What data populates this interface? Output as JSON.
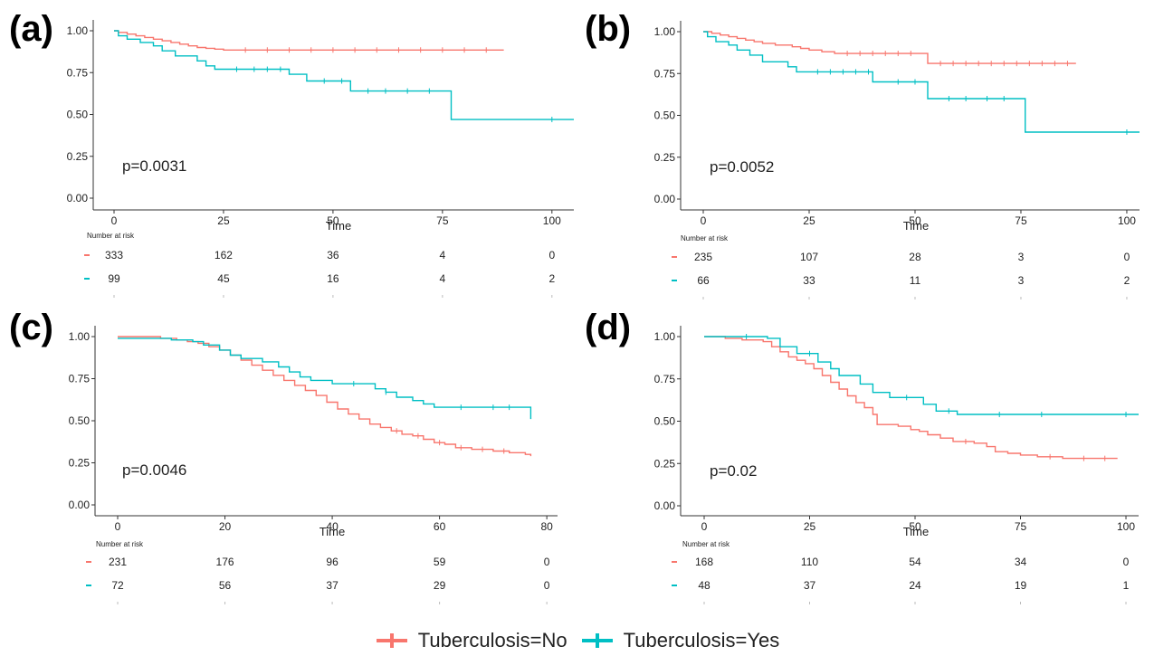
{
  "colors": {
    "no": "#F8766D",
    "yes": "#00BFC4",
    "axis": "#333333",
    "text": "#222222"
  },
  "legend": [
    {
      "label": "Tuberculosis=No",
      "color": "#F8766D"
    },
    {
      "label": "Tuberculosis=Yes",
      "color": "#00BFC4"
    }
  ],
  "chart_data": [
    {
      "panel": "(a)",
      "type": "line",
      "subtype": "kaplan-meier",
      "xlabel": "Time",
      "xlim": [
        0,
        105
      ],
      "ylim": [
        0,
        1
      ],
      "xticks": [
        "0",
        "25",
        "50",
        "75",
        "100"
      ],
      "yticks": [
        "0.00",
        "0.25",
        "0.50",
        "0.75",
        "1.00"
      ],
      "pvalue": "p=0.0031",
      "series": [
        {
          "name": "Tuberculosis=No",
          "color": "#F8766D",
          "steps": [
            [
              0,
              1.0
            ],
            [
              1,
              0.99
            ],
            [
              3,
              0.98
            ],
            [
              5,
              0.97
            ],
            [
              7,
              0.96
            ],
            [
              9,
              0.95
            ],
            [
              11,
              0.94
            ],
            [
              13,
              0.93
            ],
            [
              15,
              0.92
            ],
            [
              17,
              0.91
            ],
            [
              19,
              0.9
            ],
            [
              21,
              0.895
            ],
            [
              23,
              0.89
            ],
            [
              25,
              0.885
            ],
            [
              89,
              0.885
            ]
          ],
          "censor": [
            30,
            35,
            40,
            45,
            50,
            55,
            60,
            65,
            70,
            75,
            80,
            85
          ]
        },
        {
          "name": "Tuberculosis=Yes",
          "color": "#00BFC4",
          "steps": [
            [
              0,
              1.0
            ],
            [
              1,
              0.97
            ],
            [
              3,
              0.95
            ],
            [
              6,
              0.93
            ],
            [
              9,
              0.91
            ],
            [
              11,
              0.88
            ],
            [
              14,
              0.85
            ],
            [
              19,
              0.82
            ],
            [
              21,
              0.79
            ],
            [
              23,
              0.77
            ],
            [
              40,
              0.74
            ],
            [
              44,
              0.7
            ],
            [
              54,
              0.64
            ],
            [
              77,
              0.47
            ],
            [
              105,
              0.47
            ]
          ],
          "censor": [
            28,
            32,
            35,
            38,
            48,
            52,
            58,
            62,
            67,
            72,
            100
          ]
        }
      ],
      "risk_table": {
        "title": "Number at risk",
        "x": [
          "0",
          "25",
          "50",
          "75",
          "100"
        ],
        "rows": [
          {
            "name": "Tuberculosis=No",
            "color": "#F8766D",
            "values": [
              "333",
              "162",
              "36",
              "4",
              "0"
            ]
          },
          {
            "name": "Tuberculosis=Yes",
            "color": "#00BFC4",
            "values": [
              "99",
              "45",
              "16",
              "4",
              "2"
            ]
          }
        ]
      }
    },
    {
      "panel": "(b)",
      "type": "line",
      "subtype": "kaplan-meier",
      "xlabel": "Time",
      "xlim": [
        0,
        103
      ],
      "ylim": [
        0,
        1
      ],
      "xticks": [
        "0",
        "25",
        "50",
        "75",
        "100"
      ],
      "yticks": [
        "0.00",
        "0.25",
        "0.50",
        "0.75",
        "1.00"
      ],
      "pvalue": "p=0.0052",
      "series": [
        {
          "name": "Tuberculosis=No",
          "color": "#F8766D",
          "steps": [
            [
              0,
              1.0
            ],
            [
              2,
              0.99
            ],
            [
              4,
              0.98
            ],
            [
              6,
              0.97
            ],
            [
              8,
              0.96
            ],
            [
              10,
              0.95
            ],
            [
              12,
              0.94
            ],
            [
              14,
              0.93
            ],
            [
              17,
              0.92
            ],
            [
              21,
              0.91
            ],
            [
              23,
              0.9
            ],
            [
              25,
              0.89
            ],
            [
              28,
              0.88
            ],
            [
              31,
              0.87
            ],
            [
              53,
              0.81
            ],
            [
              88,
              0.81
            ]
          ],
          "censor": [
            34,
            37,
            40,
            43,
            46,
            49,
            56,
            59,
            62,
            65,
            68,
            71,
            74,
            77,
            80,
            83,
            86
          ]
        },
        {
          "name": "Tuberculosis=Yes",
          "color": "#00BFC4",
          "steps": [
            [
              0,
              1.0
            ],
            [
              1,
              0.97
            ],
            [
              3,
              0.94
            ],
            [
              6,
              0.92
            ],
            [
              8,
              0.89
            ],
            [
              11,
              0.86
            ],
            [
              14,
              0.82
            ],
            [
              20,
              0.79
            ],
            [
              22,
              0.76
            ],
            [
              40,
              0.7
            ],
            [
              53,
              0.6
            ],
            [
              76,
              0.4
            ],
            [
              103,
              0.4
            ]
          ],
          "censor": [
            27,
            30,
            33,
            36,
            39,
            46,
            50,
            58,
            62,
            67,
            71,
            100
          ]
        }
      ],
      "risk_table": {
        "title": "Number at risk",
        "x": [
          "0",
          "25",
          "50",
          "75",
          "100"
        ],
        "rows": [
          {
            "name": "Tuberculosis=No",
            "color": "#F8766D",
            "values": [
              "235",
              "107",
              "28",
              "3",
              "0"
            ]
          },
          {
            "name": "Tuberculosis=Yes",
            "color": "#00BFC4",
            "values": [
              "66",
              "33",
              "11",
              "3",
              "2"
            ]
          }
        ]
      }
    },
    {
      "panel": "(c)",
      "type": "line",
      "subtype": "kaplan-meier",
      "xlabel": "Time",
      "xlim": [
        0,
        82
      ],
      "ylim": [
        0,
        1
      ],
      "xticks": [
        "0",
        "20",
        "40",
        "60",
        "80"
      ],
      "yticks": [
        "0.00",
        "0.25",
        "0.50",
        "0.75",
        "1.00"
      ],
      "pvalue": "p=0.0046",
      "series": [
        {
          "name": "Tuberculosis=No",
          "color": "#F8766D",
          "steps": [
            [
              0,
              1.0
            ],
            [
              8,
              0.99
            ],
            [
              11,
              0.98
            ],
            [
              13,
              0.97
            ],
            [
              15,
              0.96
            ],
            [
              17,
              0.94
            ],
            [
              19,
              0.92
            ],
            [
              21,
              0.89
            ],
            [
              23,
              0.86
            ],
            [
              25,
              0.83
            ],
            [
              27,
              0.8
            ],
            [
              29,
              0.77
            ],
            [
              31,
              0.74
            ],
            [
              33,
              0.71
            ],
            [
              35,
              0.68
            ],
            [
              37,
              0.65
            ],
            [
              39,
              0.61
            ],
            [
              41,
              0.57
            ],
            [
              43,
              0.54
            ],
            [
              45,
              0.51
            ],
            [
              47,
              0.48
            ],
            [
              49,
              0.46
            ],
            [
              51,
              0.44
            ],
            [
              53,
              0.42
            ],
            [
              55,
              0.41
            ],
            [
              57,
              0.39
            ],
            [
              59,
              0.37
            ],
            [
              61,
              0.36
            ],
            [
              63,
              0.34
            ],
            [
              66,
              0.33
            ],
            [
              70,
              0.32
            ],
            [
              73,
              0.31
            ],
            [
              76,
              0.3
            ],
            [
              77,
              0.29
            ]
          ],
          "censor": [
            52,
            56,
            60,
            64,
            68,
            72
          ]
        },
        {
          "name": "Tuberculosis=Yes",
          "color": "#00BFC4",
          "steps": [
            [
              0,
              0.99
            ],
            [
              6,
              0.99
            ],
            [
              10,
              0.98
            ],
            [
              14,
              0.97
            ],
            [
              16,
              0.95
            ],
            [
              19,
              0.92
            ],
            [
              21,
              0.89
            ],
            [
              23,
              0.87
            ],
            [
              27,
              0.85
            ],
            [
              30,
              0.82
            ],
            [
              32,
              0.79
            ],
            [
              34,
              0.76
            ],
            [
              36,
              0.74
            ],
            [
              40,
              0.72
            ],
            [
              48,
              0.69
            ],
            [
              50,
              0.67
            ],
            [
              52,
              0.64
            ],
            [
              55,
              0.62
            ],
            [
              57,
              0.6
            ],
            [
              59,
              0.58
            ],
            [
              76,
              0.58
            ],
            [
              77,
              0.51
            ]
          ],
          "censor": [
            44,
            50,
            64,
            70,
            73
          ]
        }
      ],
      "risk_table": {
        "title": "Number at risk",
        "x": [
          "0",
          "20",
          "40",
          "60",
          "80"
        ],
        "rows": [
          {
            "name": "Tuberculosis=No",
            "color": "#F8766D",
            "values": [
              "231",
              "176",
              "96",
              "59",
              "0"
            ]
          },
          {
            "name": "Tuberculosis=Yes",
            "color": "#00BFC4",
            "values": [
              "72",
              "56",
              "37",
              "29",
              "0"
            ]
          }
        ]
      }
    },
    {
      "panel": "(d)",
      "type": "line",
      "subtype": "kaplan-meier",
      "xlabel": "Time",
      "xlim": [
        0,
        103
      ],
      "ylim": [
        0,
        1
      ],
      "xticks": [
        "0",
        "25",
        "50",
        "75",
        "100"
      ],
      "yticks": [
        "0.00",
        "0.25",
        "0.50",
        "0.75",
        "1.00"
      ],
      "pvalue": "p=0.02",
      "series": [
        {
          "name": "Tuberculosis=No",
          "color": "#F8766D",
          "steps": [
            [
              0,
              1.0
            ],
            [
              5,
              0.99
            ],
            [
              9,
              0.98
            ],
            [
              14,
              0.97
            ],
            [
              16,
              0.94
            ],
            [
              18,
              0.91
            ],
            [
              20,
              0.88
            ],
            [
              22,
              0.86
            ],
            [
              24,
              0.84
            ],
            [
              26,
              0.81
            ],
            [
              28,
              0.77
            ],
            [
              30,
              0.73
            ],
            [
              32,
              0.69
            ],
            [
              34,
              0.65
            ],
            [
              36,
              0.61
            ],
            [
              38,
              0.58
            ],
            [
              40,
              0.54
            ],
            [
              41,
              0.48
            ],
            [
              46,
              0.47
            ],
            [
              49,
              0.45
            ],
            [
              51,
              0.44
            ],
            [
              53,
              0.42
            ],
            [
              56,
              0.4
            ],
            [
              59,
              0.38
            ],
            [
              64,
              0.37
            ],
            [
              67,
              0.35
            ],
            [
              69,
              0.32
            ],
            [
              72,
              0.31
            ],
            [
              75,
              0.3
            ],
            [
              79,
              0.29
            ],
            [
              85,
              0.28
            ],
            [
              98,
              0.28
            ]
          ],
          "censor": [
            62,
            82,
            90,
            95
          ]
        },
        {
          "name": "Tuberculosis=Yes",
          "color": "#00BFC4",
          "steps": [
            [
              0,
              1.0
            ],
            [
              15,
              0.99
            ],
            [
              18,
              0.94
            ],
            [
              22,
              0.9
            ],
            [
              27,
              0.85
            ],
            [
              30,
              0.81
            ],
            [
              32,
              0.77
            ],
            [
              37,
              0.72
            ],
            [
              40,
              0.67
            ],
            [
              44,
              0.64
            ],
            [
              52,
              0.6
            ],
            [
              55,
              0.56
            ],
            [
              60,
              0.54
            ],
            [
              103,
              0.54
            ]
          ],
          "censor": [
            10,
            25,
            48,
            58,
            70,
            80,
            100
          ]
        }
      ],
      "risk_table": {
        "title": "Number at risk",
        "x": [
          "0",
          "25",
          "50",
          "75",
          "100"
        ],
        "rows": [
          {
            "name": "Tuberculosis=No",
            "color": "#F8766D",
            "values": [
              "168",
              "110",
              "54",
              "34",
              "0"
            ]
          },
          {
            "name": "Tuberculosis=Yes",
            "color": "#00BFC4",
            "values": [
              "48",
              "37",
              "24",
              "19",
              "1"
            ]
          }
        ]
      }
    }
  ]
}
